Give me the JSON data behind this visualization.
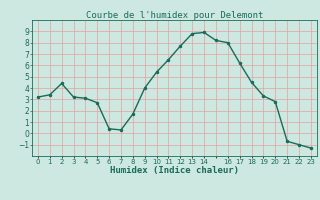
{
  "title": "Courbe de l'humidex pour Delemont",
  "xlabel": "Humidex (Indice chaleur)",
  "ylabel": "",
  "x": [
    0,
    1,
    2,
    3,
    4,
    5,
    6,
    7,
    8,
    9,
    10,
    11,
    12,
    13,
    14,
    15,
    16,
    17,
    18,
    19,
    20,
    21,
    22,
    23
  ],
  "y": [
    3.2,
    3.4,
    4.4,
    3.2,
    3.1,
    2.7,
    0.4,
    0.3,
    1.7,
    4.0,
    5.4,
    6.5,
    7.7,
    8.8,
    8.9,
    8.2,
    8.0,
    6.2,
    4.5,
    3.3,
    2.8,
    -0.7,
    -1.0,
    -1.3
  ],
  "line_color": "#1a6b5a",
  "marker": ".",
  "marker_size": 3,
  "bg_color": "#cce8e0",
  "grid_color": "#e8a0a0",
  "axis_color": "#1a6b5a",
  "tick_label_color": "#1a6b5a",
  "xlabel_color": "#1a6b5a",
  "ylim": [
    -2,
    10
  ],
  "xlim": [
    -0.5,
    23.5
  ],
  "yticks": [
    -1,
    0,
    1,
    2,
    3,
    4,
    5,
    6,
    7,
    8,
    9
  ],
  "xtick_labels": [
    "0",
    "1",
    "2",
    "3",
    "4",
    "5",
    "6",
    "7",
    "8",
    "9",
    "10",
    "11",
    "12",
    "13",
    "14",
    "",
    "16",
    "17",
    "18",
    "19",
    "20",
    "21",
    "22",
    "23"
  ],
  "linewidth": 1.0,
  "title_color": "#1a6b5a",
  "title_fontsize": 6.5
}
